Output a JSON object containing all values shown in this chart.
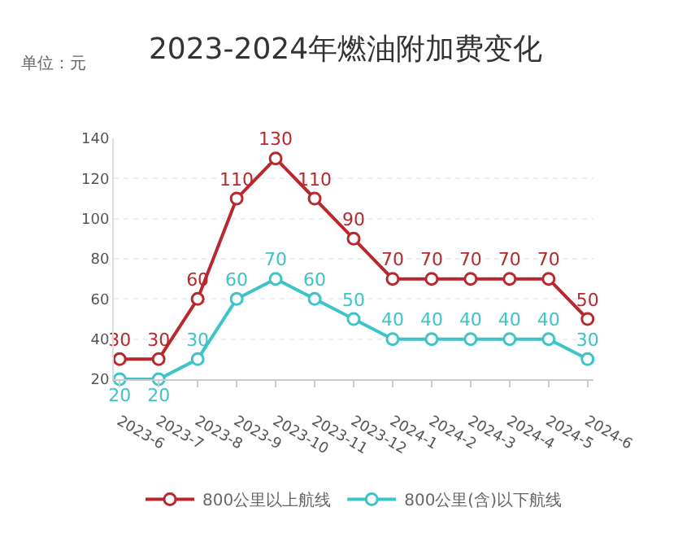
{
  "chart_data": {
    "type": "line",
    "title": "2023-2024年燃油附加费变化",
    "subtitle": "单位：元",
    "categories": [
      "2023-6",
      "2023-7",
      "2023-8",
      "2023-9",
      "2023-10",
      "2023-11",
      "2023-12",
      "2024-1",
      "2024-2",
      "2024-3",
      "2024-4",
      "2024-5",
      "2024-6"
    ],
    "series": [
      {
        "name": "800公里以上航线",
        "color": "#b8282d",
        "values": [
          30,
          30,
          60,
          110,
          130,
          110,
          90,
          70,
          70,
          70,
          70,
          70,
          50
        ]
      },
      {
        "name": "800公里(含)以下航线",
        "color": "#3cc4c8",
        "values": [
          20,
          20,
          30,
          60,
          70,
          60,
          50,
          40,
          40,
          40,
          40,
          40,
          30
        ]
      }
    ],
    "ylim": [
      20,
      140
    ],
    "yticks": [
      20,
      40,
      60,
      80,
      100,
      120,
      140
    ],
    "grid": "y",
    "legend": "bottom",
    "marker": "circle",
    "line_style": "solid",
    "data_labels": true
  }
}
